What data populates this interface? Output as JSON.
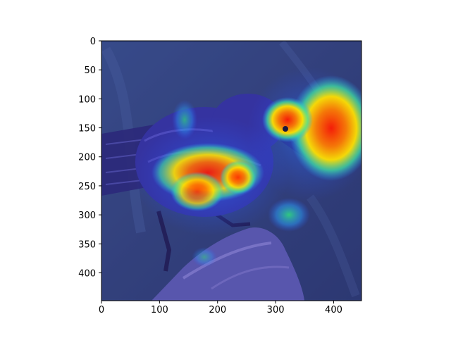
{
  "image": {
    "subject": "small dark bird perched on a branch",
    "overlay": "saliency heatmap (jet colormap)",
    "image_size": 448
  },
  "axes": {
    "xlim": [
      0,
      448
    ],
    "ylim": [
      0,
      448
    ],
    "y_inverted": true,
    "x_ticks": [
      "0",
      "100",
      "200",
      "300",
      "400"
    ],
    "y_ticks": [
      "0",
      "50",
      "100",
      "150",
      "200",
      "250",
      "300",
      "350",
      "400"
    ],
    "x_tick_values": [
      0,
      100,
      200,
      300,
      400
    ],
    "y_tick_values": [
      0,
      50,
      100,
      150,
      200,
      250,
      300,
      350,
      400
    ]
  },
  "colors": {
    "overlay_base": "#3a3fd0",
    "hot": "#ff2a00",
    "warm": "#ffe000",
    "cool": "#33e08a",
    "frame": "#000000"
  }
}
